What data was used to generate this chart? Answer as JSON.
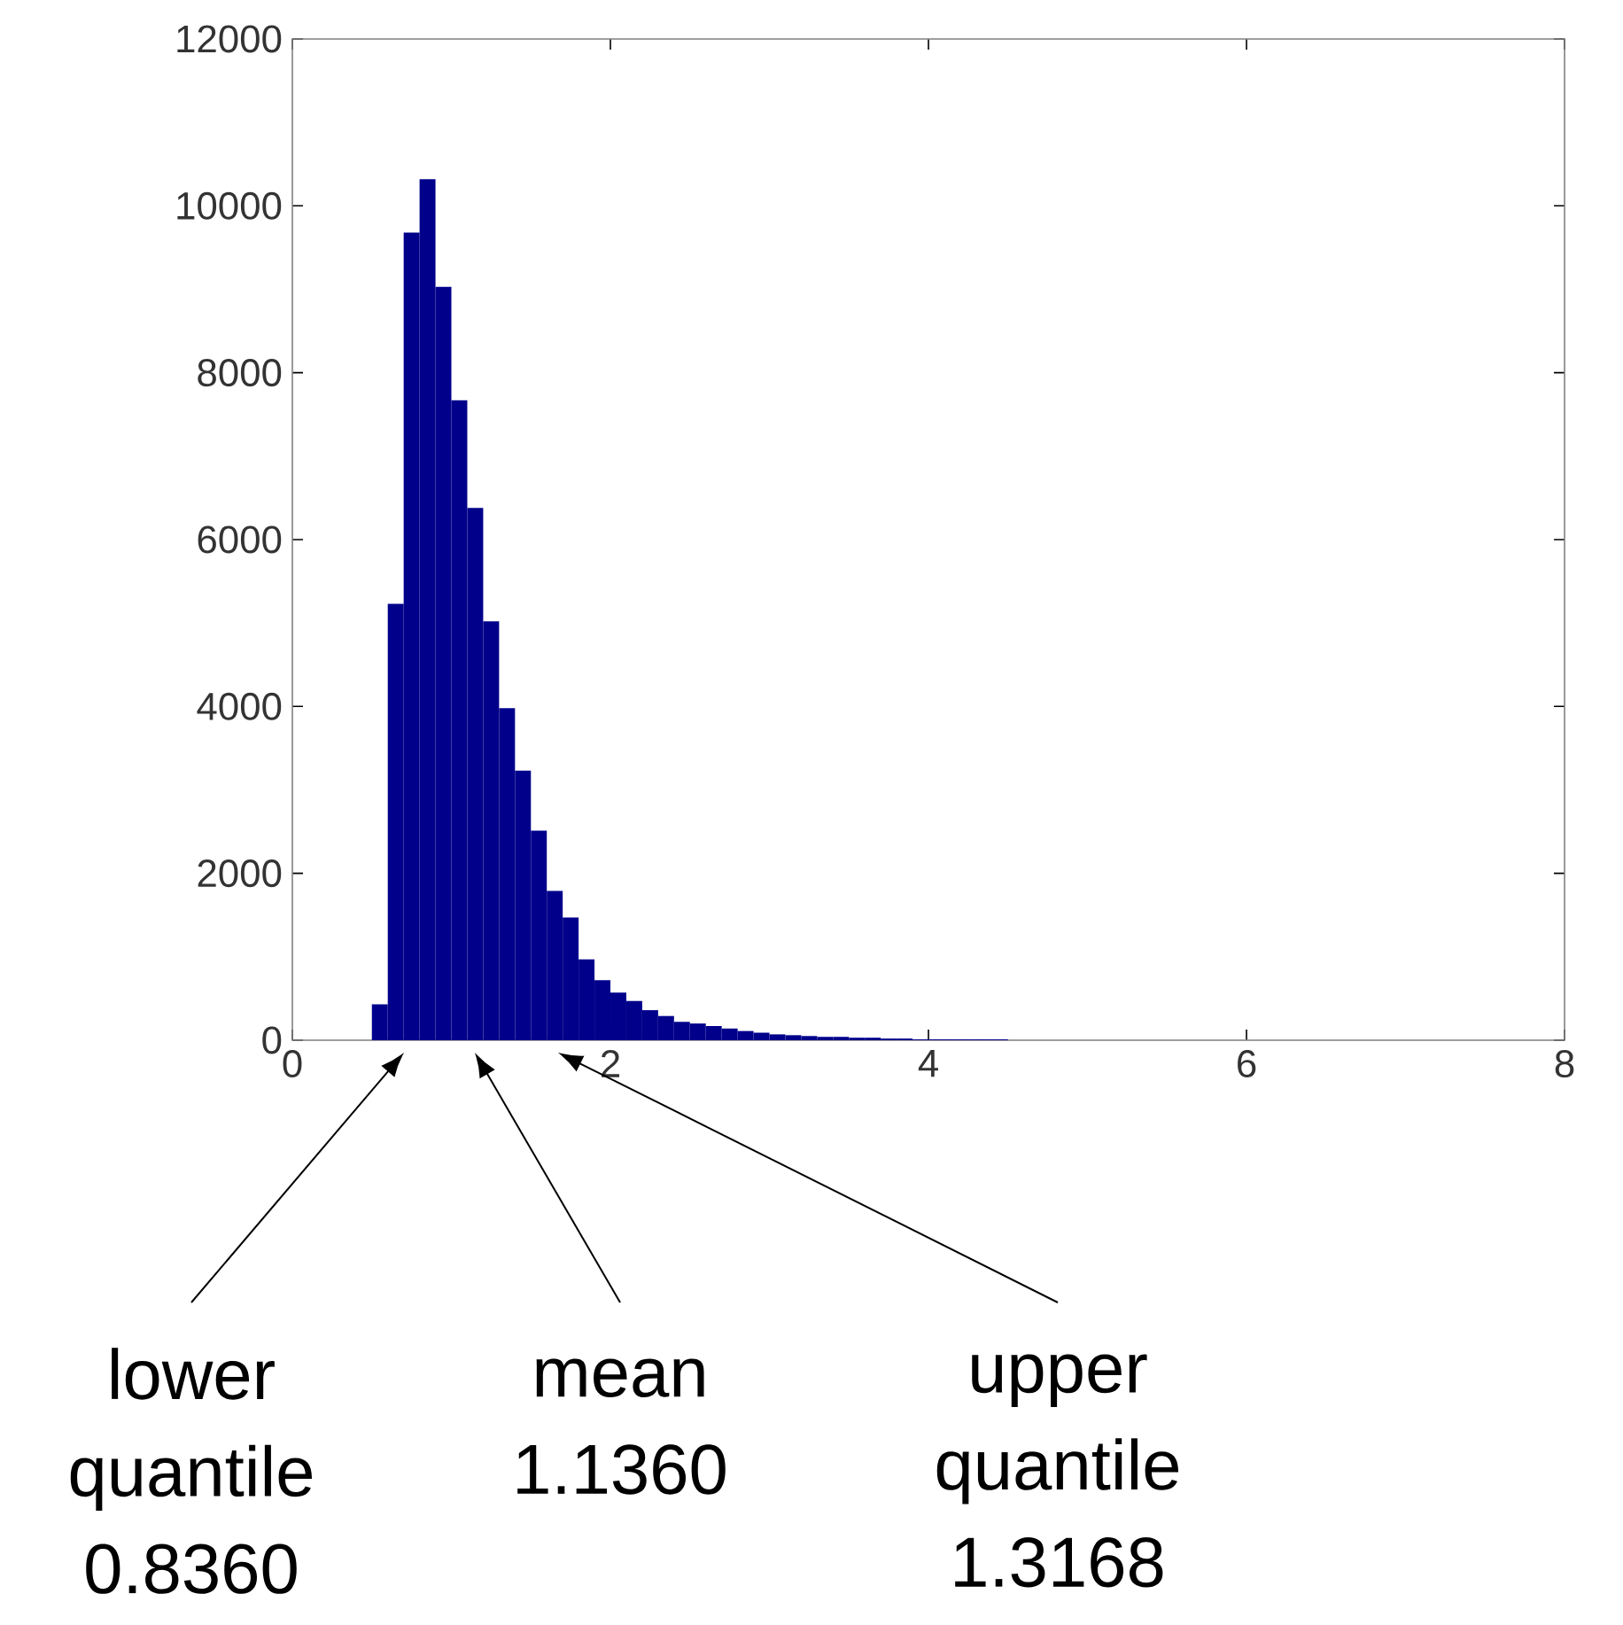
{
  "chart_data": {
    "type": "histogram",
    "bins": [
      0.5,
      0.6,
      0.7,
      0.8,
      0.9,
      1.0,
      1.1,
      1.2,
      1.3,
      1.4,
      1.5,
      1.6,
      1.7,
      1.8,
      1.9,
      2.0,
      2.1,
      2.2,
      2.3,
      2.4,
      2.5,
      2.6,
      2.7,
      2.8,
      2.9,
      3.0,
      3.1,
      3.2,
      3.3,
      3.4,
      3.5,
      3.6,
      3.7,
      3.8,
      3.9,
      4.0,
      4.1,
      4.2,
      4.3,
      4.4,
      4.5
    ],
    "values": [
      430,
      5230,
      9680,
      10320,
      9030,
      7670,
      6380,
      5020,
      3980,
      3230,
      2510,
      1790,
      1470,
      970,
      720,
      570,
      470,
      360,
      290,
      220,
      200,
      170,
      140,
      110,
      90,
      70,
      60,
      50,
      40,
      40,
      30,
      30,
      20,
      20,
      10,
      10,
      10,
      10,
      10,
      10
    ],
    "color": "#00008b",
    "xlim": [
      0,
      8
    ],
    "xticks": [
      0,
      2,
      4,
      6,
      8
    ],
    "ylim": [
      0,
      12000
    ],
    "yticks": [
      0,
      2000,
      4000,
      6000,
      8000,
      10000,
      12000
    ],
    "annotations": [
      "lower quantile 0.8360",
      "mean 1.1360",
      "upper quantile 1.3168"
    ]
  }
}
